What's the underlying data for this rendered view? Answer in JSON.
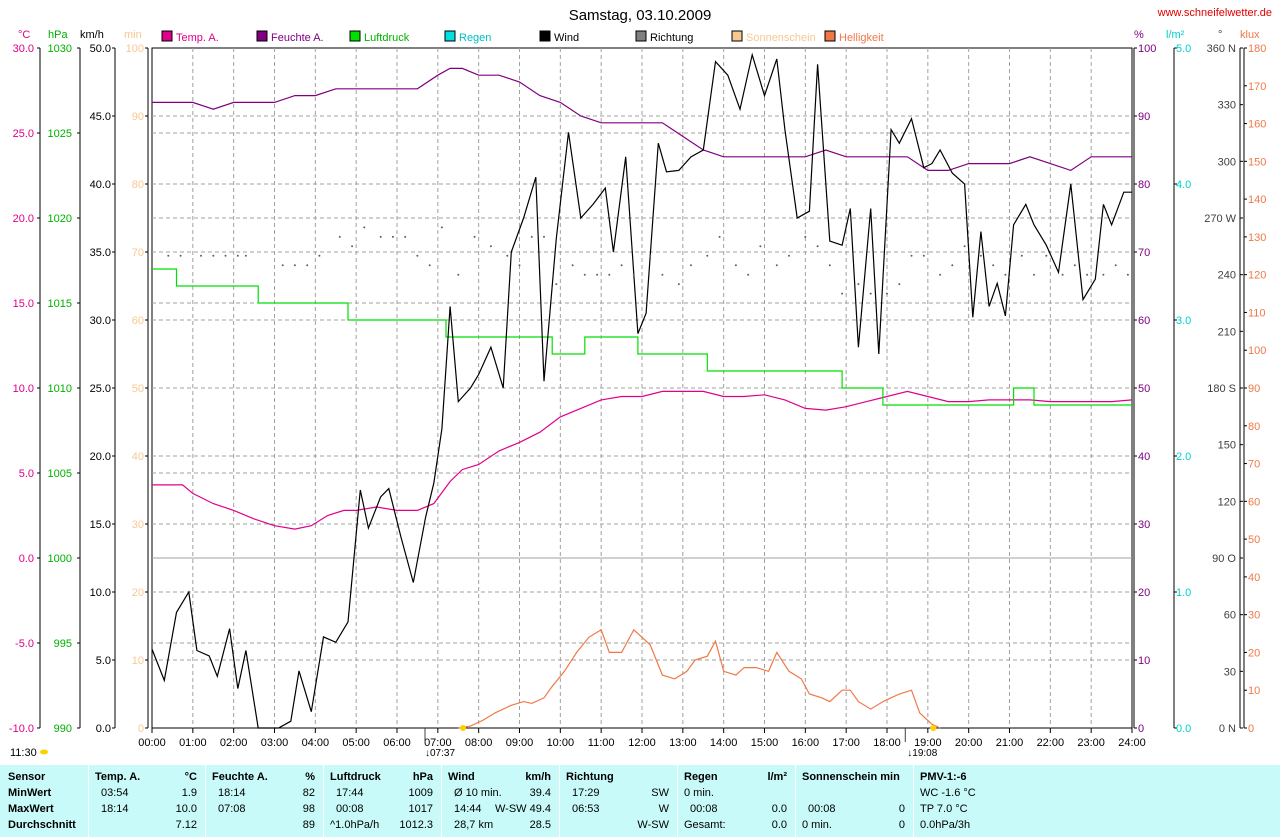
{
  "header": {
    "title": "Samstag, 03.10.2009",
    "website": "www.schneifelwetter.de",
    "unit_labels": {
      "temp": "°C",
      "press": "hPa",
      "wind": "km/h",
      "sun": "min",
      "hum": "%",
      "rain": "l/m²",
      "dir": "°",
      "lux": "klux"
    },
    "legend": [
      {
        "label": "Temp. A.",
        "color": "#e0008a"
      },
      {
        "label": "Feuchte A.",
        "color": "#800080"
      },
      {
        "label": "Luftdruck",
        "color": "#00e000"
      },
      {
        "label": "Regen",
        "color": "#00e0e0"
      },
      {
        "label": "Wind",
        "color": "#000000"
      },
      {
        "label": "Richtung",
        "color": "#808080"
      },
      {
        "label": "Sonnenschein",
        "color": "#f8c890"
      },
      {
        "label": "Helligkeit",
        "color": "#f07848"
      }
    ]
  },
  "chart_data": {
    "type": "line",
    "title": "Samstag, 03.10.2009",
    "x_tick_labels": [
      "00:00",
      "01:00",
      "02:00",
      "03:00",
      "04:00",
      "05:00",
      "06:00",
      "07:00",
      "08:00",
      "09:00",
      "10:00",
      "11:00",
      "12:00",
      "13:00",
      "14:00",
      "15:00",
      "16:00",
      "17:00",
      "18:00",
      "19:00",
      "20:00",
      "21:00",
      "22:00",
      "23:00",
      "24:00"
    ],
    "x_range_hours": [
      0,
      24
    ],
    "axes": {
      "temp": {
        "label": "°C",
        "range": [
          -10,
          30
        ],
        "ticks": [
          "-10.0",
          "-5.0",
          "0.0",
          "5.0",
          "10.0",
          "15.0",
          "20.0",
          "25.0",
          "30.0"
        ],
        "color": "#e0008a"
      },
      "press": {
        "label": "hPa",
        "range": [
          990,
          1030
        ],
        "ticks": [
          "990",
          "995",
          "1000",
          "1005",
          "1010",
          "1015",
          "1020",
          "1025",
          "1030"
        ],
        "color": "#00b000"
      },
      "wind": {
        "label": "km/h",
        "range": [
          0,
          50
        ],
        "ticks": [
          "0.0",
          "5.0",
          "10.0",
          "15.0",
          "20.0",
          "25.0",
          "30.0",
          "35.0",
          "40.0",
          "45.0",
          "50.0"
        ],
        "color": "#000000"
      },
      "sun": {
        "label": "min",
        "range": [
          0,
          100
        ],
        "ticks": [
          "0",
          "10",
          "20",
          "30",
          "40",
          "50",
          "60",
          "70",
          "80",
          "90",
          "100"
        ],
        "color": "#f8c890"
      },
      "hum": {
        "label": "%",
        "range": [
          0,
          100
        ],
        "ticks": [
          "0",
          "10",
          "20",
          "30",
          "40",
          "50",
          "60",
          "70",
          "80",
          "90",
          "100"
        ],
        "color": "#800080"
      },
      "rain": {
        "label": "l/m²",
        "range": [
          0,
          5
        ],
        "ticks": [
          "0.0",
          "1.0",
          "2.0",
          "3.0",
          "4.0",
          "5.0"
        ],
        "color": "#00d0d0"
      },
      "dir": {
        "label": "°",
        "range": [
          0,
          360
        ],
        "ticks": [
          "0 N",
          "30",
          "60",
          "90 O",
          "120",
          "150",
          "180 S",
          "210",
          "240",
          "270 W",
          "300",
          "330",
          "360 N"
        ],
        "color": "#606060"
      },
      "lux": {
        "label": "klux",
        "range": [
          0,
          180
        ],
        "ticks": [
          "0",
          "10",
          "20",
          "30",
          "40",
          "50",
          "60",
          "70",
          "80",
          "90",
          "100",
          "110",
          "120",
          "130",
          "140",
          "150",
          "160",
          "170",
          "180"
        ],
        "color": "#f07848"
      }
    },
    "series": [
      {
        "name": "Temp. A.",
        "axis": "temp",
        "color": "#e0008a",
        "x": [
          0,
          0.75,
          1,
          1.5,
          2,
          2.5,
          3,
          3.5,
          3.9,
          4.3,
          4.7,
          5,
          5.5,
          6,
          6.5,
          6.9,
          7.3,
          7.6,
          8,
          8.5,
          9,
          9.5,
          10,
          10.5,
          11,
          11.5,
          12,
          12.5,
          13,
          13.5,
          14,
          14.5,
          15,
          15.5,
          16,
          16.5,
          17,
          17.5,
          18,
          18.5,
          19,
          19.5,
          20,
          20.5,
          21,
          21.5,
          22,
          22.5,
          23,
          23.5,
          24
        ],
        "y": [
          4.3,
          4.3,
          3.8,
          3.2,
          2.8,
          2.3,
          1.9,
          1.7,
          1.9,
          2.5,
          2.8,
          2.8,
          3.0,
          2.8,
          2.8,
          3.2,
          4.5,
          5.2,
          5.5,
          6.3,
          6.8,
          7.4,
          8.3,
          8.8,
          9.3,
          9.5,
          9.5,
          9.8,
          9.8,
          9.8,
          9.5,
          9.5,
          9.6,
          9.3,
          8.8,
          8.7,
          8.9,
          9.2,
          9.5,
          9.8,
          9.5,
          9.2,
          9.2,
          9.3,
          9.3,
          9.3,
          9.2,
          9.2,
          9.2,
          9.2,
          9.3
        ]
      },
      {
        "name": "Feuchte A.",
        "axis": "hum",
        "color": "#800080",
        "x": [
          0,
          1,
          1.5,
          2,
          3,
          3.5,
          4,
          4.5,
          4.8,
          5,
          6,
          6.5,
          7,
          7.3,
          7.6,
          8,
          8.5,
          9,
          9.5,
          10,
          10.5,
          11,
          11.5,
          12,
          12.5,
          13,
          13.5,
          14,
          14.5,
          15,
          15.5,
          16,
          16.5,
          17,
          17.5,
          18,
          18.5,
          19,
          19.5,
          20,
          20.5,
          21,
          21.5,
          22,
          22.5,
          23,
          23.5,
          24
        ],
        "y": [
          92,
          92,
          91,
          92,
          92,
          93,
          93,
          94,
          94,
          94,
          94,
          94,
          96,
          97,
          97,
          96,
          96,
          95,
          93,
          92,
          90,
          89,
          89,
          89,
          89,
          87,
          85,
          84,
          84,
          84,
          84,
          84,
          85,
          84,
          84,
          84,
          84,
          82,
          82,
          83,
          83,
          83,
          84,
          83,
          82,
          84,
          84,
          84
        ],
        "curvePoints": 0
      },
      {
        "name": "Luftdruck",
        "axis": "press",
        "color": "#00e000",
        "x": [
          0,
          0.6,
          0.6,
          2.6,
          2.6,
          4.8,
          4.8,
          7.2,
          7.2,
          9.8,
          9.8,
          10.6,
          10.6,
          11.9,
          11.9,
          13.6,
          13.6,
          16.9,
          16.9,
          17.9,
          17.9,
          21.1,
          21.1,
          21.6,
          21.6,
          22.2,
          22.2,
          24
        ],
        "y": [
          1017,
          1017,
          1016,
          1016,
          1015,
          1015,
          1014,
          1014,
          1013,
          1013,
          1012,
          1012,
          1013,
          1013,
          1012,
          1012,
          1011,
          1011,
          1010,
          1010,
          1009,
          1009,
          1010,
          1010,
          1009,
          1009,
          1009,
          1009
        ]
      },
      {
        "name": "Wind",
        "axis": "wind",
        "color": "#000000",
        "x": [
          0,
          0.3,
          0.6,
          0.9,
          1.1,
          1.4,
          1.6,
          1.9,
          2.1,
          2.3,
          2.6,
          2.9,
          3.1,
          3.4,
          3.6,
          3.9,
          4.2,
          4.5,
          4.8,
          5.1,
          5.3,
          5.6,
          5.8,
          6.1,
          6.4,
          6.7,
          6.9,
          7.1,
          7.3,
          7.5,
          7.8,
          8.0,
          8.3,
          8.6,
          8.8,
          9.1,
          9.4,
          9.6,
          9.9,
          10.2,
          10.5,
          10.8,
          11.1,
          11.3,
          11.6,
          11.9,
          12.1,
          12.4,
          12.6,
          12.9,
          13.2,
          13.5,
          13.8,
          14.1,
          14.4,
          14.7,
          15.0,
          15.3,
          15.5,
          15.8,
          16.1,
          16.3,
          16.6,
          16.9,
          17.1,
          17.3,
          17.6,
          17.8,
          18.1,
          18.3,
          18.6,
          18.9,
          19.1,
          19.3,
          19.6,
          19.9,
          20.1,
          20.3,
          20.5,
          20.7,
          20.9,
          21.1,
          21.4,
          21.6,
          21.9,
          22.2,
          22.5,
          22.8,
          23.1,
          23.3,
          23.5,
          23.8,
          24
        ],
        "y": [
          5.8,
          3.5,
          8.5,
          10.0,
          5.7,
          5.3,
          3.8,
          7.3,
          2.9,
          5.7,
          0,
          0,
          0,
          0.5,
          4.2,
          1.2,
          6.7,
          6.3,
          7.8,
          17.5,
          14.7,
          17.0,
          17.6,
          14.0,
          10.7,
          15.5,
          18.0,
          22.0,
          31.0,
          24.0,
          25.0,
          26.0,
          28.0,
          25.0,
          35.0,
          37.5,
          40.5,
          25.5,
          36.0,
          43.8,
          37.5,
          38.5,
          39.7,
          35.0,
          42.0,
          29.0,
          30.5,
          43.0,
          40.9,
          41.0,
          42.0,
          42.5,
          49.0,
          48.0,
          45.5,
          49.5,
          46.5,
          49.2,
          44.0,
          37.5,
          38.0,
          48.8,
          35.8,
          35.5,
          38.2,
          28.0,
          38.2,
          27.5,
          44.0,
          43.0,
          44.8,
          41.2,
          41.5,
          42.5,
          40.8,
          40.0,
          30.2,
          36.5,
          31.0,
          32.7,
          30.3,
          37.0,
          38.5,
          37.0,
          35.5,
          33.5,
          40.0,
          31.5,
          33.0,
          38.5,
          37.0,
          39.4,
          39.4
        ]
      },
      {
        "name": "Richtung",
        "axis": "dir",
        "color": "#606060",
        "style": "dots",
        "x": [
          0.4,
          0.7,
          1.2,
          1.5,
          1.8,
          2.1,
          2.3,
          3.2,
          3.5,
          3.8,
          4.1,
          4.6,
          4.9,
          5.2,
          5.6,
          5.9,
          6.2,
          6.5,
          6.8,
          7.1,
          7.5,
          7.9,
          8.3,
          8.7,
          9.0,
          9.3,
          9.6,
          9.9,
          10.3,
          10.6,
          10.9,
          11.2,
          11.5,
          11.8,
          12.2,
          12.5,
          12.9,
          13.2,
          13.6,
          13.9,
          14.3,
          14.6,
          14.9,
          15.3,
          15.6,
          16.0,
          16.3,
          16.6,
          16.9,
          17.3,
          17.6,
          18.0,
          18.3,
          18.6,
          18.9,
          19.3,
          19.6,
          19.9,
          20.3,
          20.6,
          20.9,
          21.3,
          21.6,
          21.9,
          22.3,
          22.6,
          22.9,
          23.3,
          23.6,
          23.9
        ],
        "y": [
          250,
          250,
          250,
          250,
          250,
          250,
          250,
          245,
          245,
          245,
          250,
          260,
          255,
          265,
          260,
          260,
          260,
          250,
          245,
          265,
          240,
          260,
          255,
          250,
          245,
          260,
          260,
          235,
          245,
          240,
          240,
          240,
          245,
          240,
          250,
          240,
          235,
          245,
          250,
          260,
          245,
          240,
          255,
          245,
          250,
          260,
          255,
          245,
          230,
          235,
          230,
          230,
          235,
          250,
          250,
          240,
          245,
          255,
          250,
          245,
          240,
          250,
          240,
          250,
          240,
          245,
          240,
          240,
          245,
          240
        ]
      },
      {
        "name": "Helligkeit",
        "axis": "lux",
        "color": "#f07848",
        "x": [
          7.5,
          7.8,
          8.1,
          8.4,
          8.8,
          9.1,
          9.3,
          9.6,
          9.8,
          10.1,
          10.4,
          10.7,
          11.0,
          11.2,
          11.5,
          11.8,
          12.0,
          12.2,
          12.5,
          12.8,
          13.1,
          13.3,
          13.6,
          13.8,
          14.0,
          14.3,
          14.5,
          14.8,
          15.1,
          15.3,
          15.6,
          15.9,
          16.1,
          16.4,
          16.6,
          16.9,
          17.1,
          17.3,
          17.6,
          17.9,
          18.1,
          18.3,
          18.6,
          18.8,
          19.1,
          19.3
        ],
        "y": [
          0,
          0.5,
          2,
          4,
          6,
          7,
          6.5,
          8,
          11,
          15,
          20,
          24,
          26,
          20,
          20,
          26,
          24,
          22,
          14,
          13,
          15,
          18,
          19,
          23,
          15,
          14,
          16,
          16,
          15,
          20,
          15,
          13,
          9,
          8,
          7,
          10,
          10,
          7,
          5,
          7,
          8,
          9,
          10,
          4,
          1,
          0
        ]
      }
    ],
    "sun_markers": {
      "sunrise": "07:37",
      "sunset": "19:08"
    },
    "moon_label": "11:30"
  },
  "stats": {
    "sensor": {
      "title": "Sensor",
      "rows": [
        "MinWert",
        "MaxWert",
        "Durchschnitt"
      ]
    },
    "temp": {
      "title": "Temp. A.",
      "unit": "°C",
      "rows": [
        {
          "t": "03:54",
          "v": "1.9"
        },
        {
          "t": "18:14",
          "v": "10.0"
        },
        {
          "t": "",
          "v": "7.12"
        }
      ]
    },
    "hum": {
      "title": "Feuchte A.",
      "unit": "%",
      "rows": [
        {
          "t": "18:14",
          "v": "82"
        },
        {
          "t": "07:08",
          "v": "98"
        },
        {
          "t": "",
          "v": "89"
        }
      ]
    },
    "press": {
      "title": "Luftdruck",
      "unit": "hPa",
      "rows": [
        {
          "t": "17:44",
          "v": "1009"
        },
        {
          "t": "00:08",
          "v": "1017"
        },
        {
          "t": "^1.0hPa/h",
          "v": "1012.3"
        }
      ]
    },
    "wind": {
      "title": "Wind",
      "unit": "km/h",
      "rows": [
        {
          "t": "Ø 10 min.",
          "v": "39.4"
        },
        {
          "t": "14:44",
          "v": "W-SW 49.4"
        },
        {
          "t": "28,7 km",
          "v": "28.5"
        }
      ]
    },
    "dir": {
      "title": "Richtung",
      "rows": [
        {
          "t": "17:29",
          "v": "SW"
        },
        {
          "t": "06:53",
          "v": "W"
        },
        {
          "t": "",
          "v": "W-SW"
        }
      ]
    },
    "rain": {
      "title": "Regen",
      "unit": "l/m²",
      "rows": [
        {
          "t": "0 min.",
          "v": ""
        },
        {
          "t": "00:08",
          "v": "0.0"
        },
        {
          "t": "Gesamt:",
          "v": "0.0"
        }
      ]
    },
    "sun": {
      "title": "Sonnenschein min",
      "rows": [
        {
          "t": "",
          "v": ""
        },
        {
          "t": "00:08",
          "v": "0"
        },
        {
          "t": "0 min.",
          "v": "0"
        }
      ]
    },
    "pmv": {
      "title": "PMV-1:-6",
      "rows": [
        "WC -1.6 °C",
        "TP 7.0 °C",
        "0.0hPa/3h"
      ]
    }
  }
}
